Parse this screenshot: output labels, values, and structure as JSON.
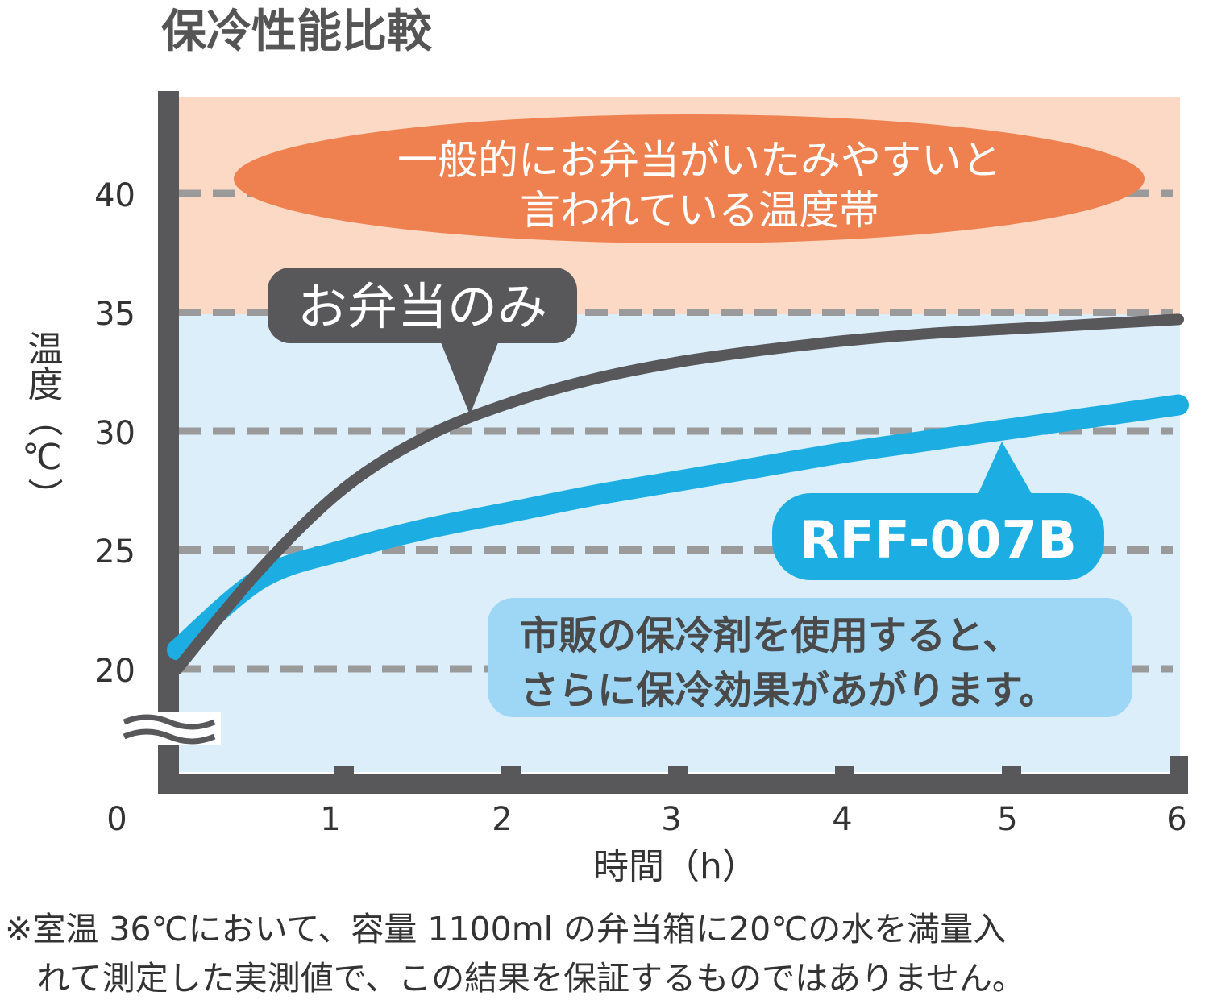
{
  "chart_data": {
    "type": "line",
    "title": "保冷性能比較",
    "xlabel": "時間（h）",
    "ylabel": "温度（℃）",
    "x_ticks": [
      "0",
      "1",
      "2",
      "3",
      "4",
      "5",
      "6"
    ],
    "y_ticks": [
      "20",
      "25",
      "30",
      "35",
      "40"
    ],
    "xlim": [
      0,
      6
    ],
    "ylim": [
      16,
      44
    ],
    "grid": "dashed horizontal at 20, 25, 30, 35, 40",
    "series": [
      {
        "name": "お弁当のみ",
        "color": "#58575a",
        "x": [
          0,
          0.5,
          1,
          1.5,
          2,
          2.5,
          3,
          3.5,
          4,
          4.5,
          5,
          5.5,
          6
        ],
        "y": [
          20,
          24.2,
          27.6,
          29.8,
          31.2,
          32.2,
          32.9,
          33.4,
          33.8,
          34.1,
          34.3,
          34.5,
          34.7
        ]
      },
      {
        "name": "RFF-007B",
        "color": "#1caee3",
        "x": [
          0,
          0.5,
          1,
          1.5,
          2,
          2.5,
          3,
          3.5,
          4,
          4.5,
          5,
          5.5,
          6
        ],
        "y": [
          20.8,
          23.8,
          25.0,
          25.9,
          26.6,
          27.3,
          27.9,
          28.5,
          29.1,
          29.6,
          30.1,
          30.6,
          31.1
        ]
      }
    ],
    "bands": [
      {
        "label_line1": "一般的にお弁当がいたみやすいと",
        "label_line2": "言われている温度帯",
        "from": 35,
        "to": 44,
        "color": "#fbd9c5"
      },
      {
        "from": 16,
        "to": 35,
        "color": "#dbeefa"
      }
    ],
    "annotations": {
      "bento_only": "お弁当のみ",
      "product": "RFF-007B",
      "note_line1": "市販の保冷剤を使用すると、",
      "note_line2": "さらに保冷効果があがります。"
    }
  },
  "footnote": {
    "line1": "※室温 36℃において、容量 1100ml の弁当箱に20℃の水を満量入",
    "line2": "れて測定した実測値で、この結果を保証するものではありません。"
  },
  "colors": {
    "axis": "#58575a",
    "grid": "#9a9a9a",
    "band_label_fill": "#ee814f",
    "dark_series": "#58575a",
    "blue_series": "#1caee3",
    "note_fill": "#9dd7f5"
  }
}
